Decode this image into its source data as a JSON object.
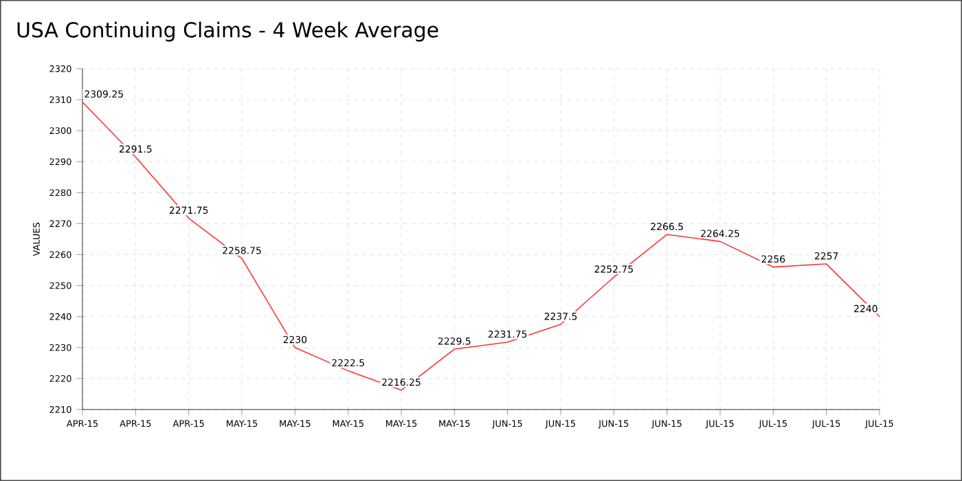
{
  "chart_data": {
    "type": "line",
    "title": "USA Continuing Claims - 4 Week Average",
    "ylabel": "VALUES",
    "categories": [
      "APR-15",
      "APR-15",
      "APR-15",
      "MAY-15",
      "MAY-15",
      "MAY-15",
      "MAY-15",
      "MAY-15",
      "JUN-15",
      "JUN-15",
      "JUN-15",
      "JUN-15",
      "JUL-15",
      "JUL-15",
      "JUL-15",
      "JUL-15"
    ],
    "values": [
      2309.25,
      2291.5,
      2271.75,
      2258.75,
      2230,
      2222.5,
      2216.25,
      2229.5,
      2231.75,
      2237.5,
      2252.75,
      2266.5,
      2264.25,
      2256,
      2257,
      2240
    ],
    "color": "#ff3333",
    "ylim": [
      2210,
      2320
    ],
    "yticks": [
      2210,
      2220,
      2230,
      2240,
      2250,
      2260,
      2270,
      2280,
      2290,
      2300,
      2310,
      2320
    ],
    "grid": true,
    "data_labels": true,
    "marker": "none",
    "line_style": "solid"
  }
}
